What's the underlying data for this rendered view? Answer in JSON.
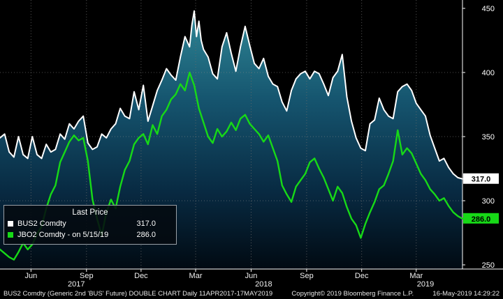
{
  "chart_data": {
    "type": "line",
    "title": "BUS2 Comdty DOUBLE CHART",
    "y_axis": {
      "min": 250,
      "max": 450,
      "ticks": [
        250,
        300,
        350,
        400,
        450
      ],
      "side": "right"
    },
    "x_axis": {
      "ticks": [
        {
          "label": "Jun",
          "pos": 6.7
        },
        {
          "label": "Sep",
          "pos": 18.7
        },
        {
          "label": "Dec",
          "pos": 30.5
        },
        {
          "label": "Mar",
          "pos": 42.3
        },
        {
          "label": "Jun",
          "pos": 54.3
        },
        {
          "label": "Sep",
          "pos": 66.3
        },
        {
          "label": "Dec",
          "pos": 78.2
        },
        {
          "label": "Mar",
          "pos": 90.0
        }
      ],
      "years": [
        {
          "label": "2017",
          "pos": 16.5
        },
        {
          "label": "2018",
          "pos": 57.0
        },
        {
          "label": "2019",
          "pos": 92.0
        }
      ],
      "range": "11APR2017 - 17MAY2019"
    },
    "grid": {
      "h_lines": [
        300,
        350,
        400
      ],
      "on": true
    },
    "colors": {
      "area_top": "#2f8796",
      "area_mid": "#15546e",
      "area_low": "#082a42",
      "area_bottom": "#010a12",
      "axis": "#ffffff",
      "gridline": "#6a6a6a"
    },
    "series": [
      {
        "name": "BUS2 Comdty",
        "color": "#ffffff",
        "last": 317.0,
        "fill": true,
        "points": [
          [
            0,
            349
          ],
          [
            1,
            352
          ],
          [
            2,
            338
          ],
          [
            3,
            334
          ],
          [
            4,
            350
          ],
          [
            5,
            336
          ],
          [
            6,
            333
          ],
          [
            7,
            350
          ],
          [
            8,
            336
          ],
          [
            9,
            333
          ],
          [
            10,
            344
          ],
          [
            11,
            338
          ],
          [
            12,
            340
          ],
          [
            13,
            352
          ],
          [
            14,
            348
          ],
          [
            15,
            360
          ],
          [
            16,
            356
          ],
          [
            17,
            362
          ],
          [
            18,
            366
          ],
          [
            19,
            345
          ],
          [
            20,
            340
          ],
          [
            21,
            342
          ],
          [
            22,
            352
          ],
          [
            23,
            349
          ],
          [
            24,
            356
          ],
          [
            25,
            360
          ],
          [
            26,
            372
          ],
          [
            27,
            366
          ],
          [
            28,
            364
          ],
          [
            29,
            385
          ],
          [
            30,
            371
          ],
          [
            31,
            390
          ],
          [
            32,
            362
          ],
          [
            33,
            374
          ],
          [
            34,
            386
          ],
          [
            35,
            394
          ],
          [
            36,
            403
          ],
          [
            37,
            398
          ],
          [
            38,
            394
          ],
          [
            39,
            412
          ],
          [
            40,
            428
          ],
          [
            41,
            420
          ],
          [
            41.5,
            437
          ],
          [
            42,
            448
          ],
          [
            42.5,
            428
          ],
          [
            43,
            440
          ],
          [
            43.5,
            425
          ],
          [
            44,
            418
          ],
          [
            45,
            412
          ],
          [
            46,
            399
          ],
          [
            47,
            395
          ],
          [
            48,
            420
          ],
          [
            49,
            431
          ],
          [
            50,
            415
          ],
          [
            51,
            401
          ],
          [
            52,
            420
          ],
          [
            53,
            436
          ],
          [
            54,
            421
          ],
          [
            55,
            407
          ],
          [
            56,
            403
          ],
          [
            57,
            411
          ],
          [
            58,
            397
          ],
          [
            59,
            391
          ],
          [
            60,
            389
          ],
          [
            61,
            377
          ],
          [
            62,
            370
          ],
          [
            63,
            386
          ],
          [
            64,
            395
          ],
          [
            65,
            399
          ],
          [
            66,
            401
          ],
          [
            67,
            395
          ],
          [
            68,
            401
          ],
          [
            69,
            399
          ],
          [
            70,
            391
          ],
          [
            71,
            382
          ],
          [
            72,
            396
          ],
          [
            73,
            401
          ],
          [
            74,
            414
          ],
          [
            75,
            381
          ],
          [
            76,
            362
          ],
          [
            77,
            349
          ],
          [
            78,
            341
          ],
          [
            79,
            339
          ],
          [
            80,
            360
          ],
          [
            81,
            363
          ],
          [
            82,
            380
          ],
          [
            83,
            371
          ],
          [
            84,
            366
          ],
          [
            85,
            364
          ],
          [
            86,
            385
          ],
          [
            87,
            389
          ],
          [
            88,
            391
          ],
          [
            89,
            386
          ],
          [
            90,
            376
          ],
          [
            91,
            371
          ],
          [
            92,
            366
          ],
          [
            93,
            351
          ],
          [
            94,
            341
          ],
          [
            95,
            331
          ],
          [
            96,
            333
          ],
          [
            97,
            326
          ],
          [
            98,
            321
          ],
          [
            99,
            318
          ],
          [
            100,
            317
          ]
        ]
      },
      {
        "name": "JBO2 Comdty",
        "color": "#17d917",
        "last": 286.0,
        "fill": false,
        "points": [
          [
            0,
            262
          ],
          [
            1,
            259
          ],
          [
            2,
            256
          ],
          [
            3,
            254
          ],
          [
            4,
            260
          ],
          [
            5,
            267
          ],
          [
            6,
            262
          ],
          [
            7,
            266
          ],
          [
            8,
            274
          ],
          [
            9,
            280
          ],
          [
            10,
            294
          ],
          [
            11,
            305
          ],
          [
            12,
            312
          ],
          [
            13,
            330
          ],
          [
            14,
            338
          ],
          [
            15,
            346
          ],
          [
            16,
            351
          ],
          [
            17,
            347
          ],
          [
            18,
            349
          ],
          [
            19,
            331
          ],
          [
            20,
            301
          ],
          [
            21,
            286
          ],
          [
            22,
            273
          ],
          [
            23,
            291
          ],
          [
            24,
            301
          ],
          [
            25,
            294
          ],
          [
            26,
            311
          ],
          [
            27,
            324
          ],
          [
            28,
            331
          ],
          [
            29,
            344
          ],
          [
            30,
            349
          ],
          [
            31,
            352
          ],
          [
            32,
            344
          ],
          [
            33,
            359
          ],
          [
            34,
            352
          ],
          [
            35,
            366
          ],
          [
            36,
            371
          ],
          [
            37,
            379
          ],
          [
            38,
            383
          ],
          [
            39,
            391
          ],
          [
            40,
            386
          ],
          [
            41,
            400
          ],
          [
            42,
            390
          ],
          [
            43,
            372
          ],
          [
            44,
            361
          ],
          [
            45,
            350
          ],
          [
            46,
            345
          ],
          [
            47,
            356
          ],
          [
            48,
            350
          ],
          [
            49,
            354
          ],
          [
            50,
            361
          ],
          [
            51,
            355
          ],
          [
            52,
            364
          ],
          [
            53,
            367
          ],
          [
            54,
            360
          ],
          [
            55,
            356
          ],
          [
            56,
            352
          ],
          [
            57,
            346
          ],
          [
            58,
            351
          ],
          [
            59,
            341
          ],
          [
            60,
            331
          ],
          [
            61,
            312
          ],
          [
            62,
            305
          ],
          [
            63,
            299
          ],
          [
            64,
            311
          ],
          [
            65,
            316
          ],
          [
            66,
            321
          ],
          [
            67,
            330
          ],
          [
            68,
            333
          ],
          [
            69,
            325
          ],
          [
            70,
            318
          ],
          [
            71,
            309
          ],
          [
            72,
            300
          ],
          [
            73,
            311
          ],
          [
            74,
            306
          ],
          [
            75,
            295
          ],
          [
            76,
            286
          ],
          [
            77,
            281
          ],
          [
            78,
            271
          ],
          [
            79,
            282
          ],
          [
            80,
            291
          ],
          [
            81,
            299
          ],
          [
            82,
            309
          ],
          [
            83,
            312
          ],
          [
            84,
            321
          ],
          [
            85,
            331
          ],
          [
            86,
            355
          ],
          [
            87,
            336
          ],
          [
            88,
            341
          ],
          [
            89,
            337
          ],
          [
            90,
            329
          ],
          [
            91,
            321
          ],
          [
            92,
            316
          ],
          [
            93,
            309
          ],
          [
            94,
            305
          ],
          [
            95,
            300
          ],
          [
            96,
            302
          ],
          [
            97,
            296
          ],
          [
            98,
            291
          ],
          [
            99,
            288
          ],
          [
            100,
            286
          ]
        ]
      }
    ],
    "last_price_badges": [
      {
        "value": "317.0",
        "bg": "#ffffff",
        "fg": "#000000"
      },
      {
        "value": "286.0",
        "bg": "#17d917",
        "fg": "#000000"
      }
    ]
  },
  "legend": {
    "title": "Last Price",
    "rows": [
      {
        "swatch": "#ffffff",
        "label": "BUS2 Comdty",
        "value": "317.0"
      },
      {
        "swatch": "#17d917",
        "label": "JBO2 Comdty -  on 5/15/19",
        "value": "286.0"
      }
    ]
  },
  "footer": {
    "left": "BUS2 Comdty (Generic 2nd 'BUS' Future) DOUBLE CHART  Daily 11APR2017-17MAY2019",
    "center": "Copyright© 2019 Bloomberg Finance L.P.",
    "right": "16-May-2019 14:29:22"
  }
}
